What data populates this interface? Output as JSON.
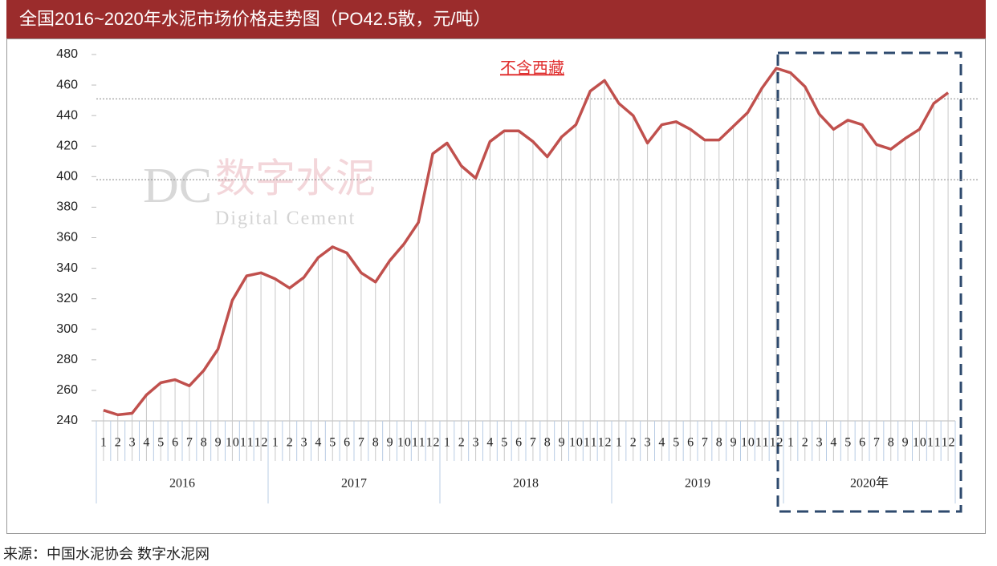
{
  "chart_data": {
    "type": "line",
    "title": "全国2016~2020年水泥市场价格走势图（PO42.5散，元/吨）",
    "annotation": "不含西藏",
    "source": "来源：中国水泥协会  数字水泥网",
    "watermark": {
      "logo": "DC",
      "cn": "数字水泥",
      "en": "Digital Cement"
    },
    "categories": [
      "1",
      "2",
      "3",
      "4",
      "5",
      "6",
      "7",
      "8",
      "9",
      "10",
      "11",
      "12",
      "1",
      "2",
      "3",
      "4",
      "5",
      "6",
      "7",
      "8",
      "9",
      "10",
      "11",
      "12",
      "1",
      "2",
      "3",
      "4",
      "5",
      "6",
      "7",
      "8",
      "9",
      "10",
      "11",
      "12",
      "1",
      "2",
      "3",
      "4",
      "5",
      "6",
      "7",
      "8",
      "9",
      "10",
      "11",
      "12",
      "1",
      "2",
      "3",
      "4",
      "5",
      "6",
      "7",
      "8",
      "9",
      "10",
      "11",
      "12"
    ],
    "years": [
      "2016",
      "2017",
      "2018",
      "2019",
      "2020年"
    ],
    "values": [
      247,
      244,
      245,
      257,
      265,
      267,
      263,
      273,
      287,
      319,
      335,
      337,
      333,
      327,
      334,
      347,
      354,
      350,
      337,
      331,
      345,
      356,
      370,
      415,
      422,
      407,
      399,
      423,
      430,
      430,
      423,
      413,
      426,
      434,
      456,
      463,
      448,
      440,
      422,
      434,
      436,
      431,
      424,
      424,
      433,
      442,
      458,
      471,
      468,
      459,
      441,
      431,
      437,
      434,
      421,
      418,
      425,
      431,
      448,
      455
    ],
    "color": "#c0504d",
    "reference_lines": [
      451,
      398
    ],
    "ylim": [
      240,
      480
    ],
    "yticks": [
      240,
      260,
      280,
      300,
      320,
      340,
      360,
      380,
      400,
      420,
      440,
      460,
      480
    ],
    "grid": false
  }
}
